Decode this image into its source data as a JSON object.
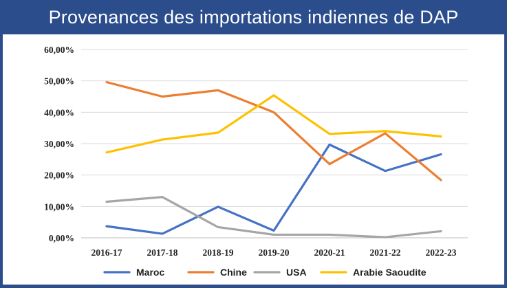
{
  "chart_data": {
    "type": "line",
    "title": "Provenances des importations indiennes de DAP",
    "categories": [
      "2016-17",
      "2017-18",
      "2018-19",
      "2019-20",
      "2020-21",
      "2021-22",
      "2022-23"
    ],
    "yticks": [
      "0,00%",
      "10,00%",
      "20,00%",
      "30,00%",
      "40,00%",
      "50,00%",
      "60,00%"
    ],
    "ylim": [
      0,
      60
    ],
    "grid": true,
    "legend_position": "bottom",
    "series": [
      {
        "name": "Maroc",
        "color": "#4472c4",
        "values": [
          3.7,
          1.3,
          9.9,
          2.3,
          29.7,
          21.3,
          26.6
        ]
      },
      {
        "name": "Chine",
        "color": "#ed7d31",
        "values": [
          49.6,
          45.0,
          47.0,
          40.0,
          23.5,
          33.3,
          18.4
        ]
      },
      {
        "name": "USA",
        "color": "#a5a5a5",
        "values": [
          11.5,
          13.0,
          3.4,
          1.0,
          1.0,
          0.2,
          2.1
        ]
      },
      {
        "name": "Arabie Saoudite",
        "color": "#ffc000",
        "values": [
          27.2,
          31.3,
          33.5,
          45.4,
          33.1,
          34.0,
          32.3
        ]
      }
    ]
  }
}
